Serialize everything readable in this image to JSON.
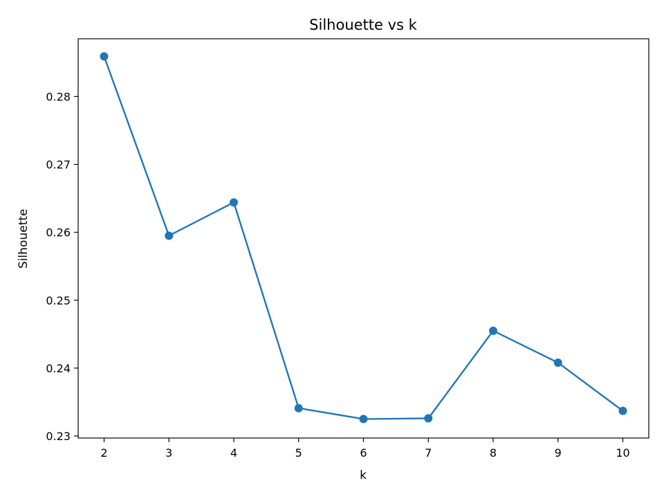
{
  "chart_data": {
    "type": "line",
    "title": "Silhouette vs k",
    "xlabel": "k",
    "ylabel": "Silhouette",
    "x": [
      2,
      3,
      4,
      5,
      6,
      7,
      8,
      9,
      10
    ],
    "series": [
      {
        "values": [
          0.2859,
          0.2595,
          0.2644,
          0.2341,
          0.2325,
          0.2326,
          0.2455,
          0.2408,
          0.2337
        ],
        "color": "#1f77b4",
        "marker": "circle"
      }
    ],
    "xticks": [
      2,
      3,
      4,
      5,
      6,
      7,
      8,
      9,
      10
    ],
    "xtick_labels": [
      "2",
      "3",
      "4",
      "5",
      "6",
      "7",
      "8",
      "9",
      "10"
    ],
    "yticks": [
      0.23,
      0.24,
      0.25,
      0.26,
      0.27,
      0.28
    ],
    "ytick_labels": [
      "0.23",
      "0.24",
      "0.25",
      "0.26",
      "0.27",
      "0.28"
    ],
    "xlim": [
      1.6,
      10.4
    ],
    "ylim": [
      0.2297,
      0.2885
    ],
    "grid": false,
    "legend": false
  }
}
